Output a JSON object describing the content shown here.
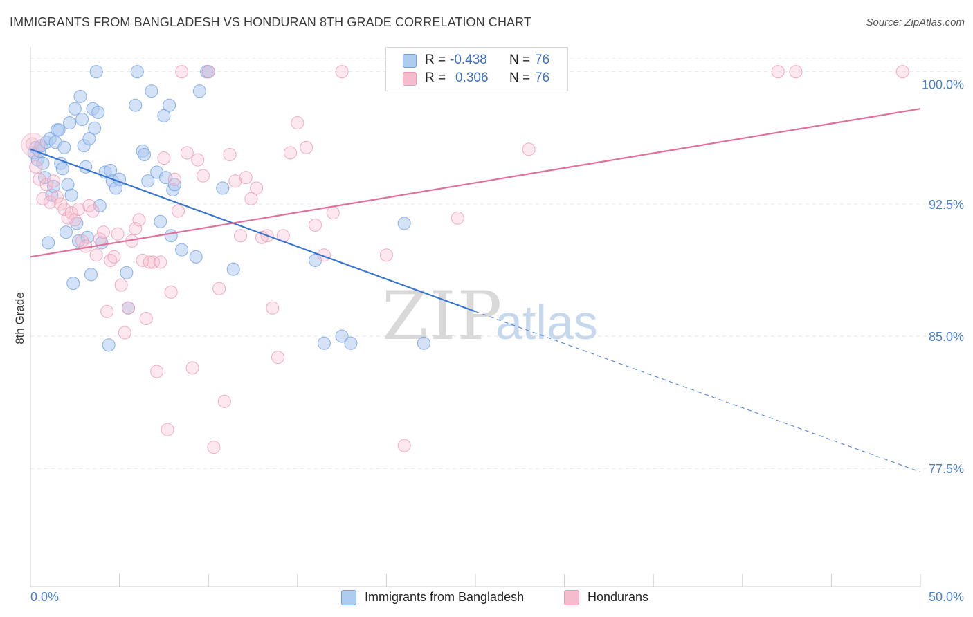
{
  "title": "IMMIGRANTS FROM BANGLADESH VS HONDURAN 8TH GRADE CORRELATION CHART",
  "source": "Source: ZipAtlas.com",
  "watermark": {
    "zip": "ZIP",
    "atlas": "atlas"
  },
  "legend": {
    "r_label": "R =",
    "n_label": "N =",
    "rows": [
      {
        "r": "-0.438",
        "n": "76",
        "color": "#aecbf0"
      },
      {
        "r": "0.306",
        "n": "76",
        "color": "#f6bccd"
      }
    ]
  },
  "chart_data": {
    "type": "scatter",
    "title": "IMMIGRANTS FROM BANGLADESH VS HONDURAN 8TH GRADE CORRELATION CHART",
    "xlabel": "",
    "ylabel": "8th Grade",
    "xlim": [
      0,
      50
    ],
    "ylim": [
      70.8,
      101.4
    ],
    "x_tick_labels": [
      "0.0%",
      "50.0%"
    ],
    "y_ticks": [
      77.5,
      85.0,
      92.5,
      100.0
    ],
    "y_tick_labels": [
      "77.5%",
      "85.0%",
      "92.5%",
      "100.0%"
    ],
    "grid": true,
    "legend_position": "top-center",
    "series": [
      {
        "name": "Immigrants from Bangladesh",
        "color": "#6f9fe0",
        "fill": "#aecbf0",
        "r": -0.438,
        "n": 76,
        "trend": {
          "x0": 0.0,
          "y0": 95.6,
          "x1": 25.0,
          "y1": 86.4,
          "dash_to_x": 50.0,
          "dash_to_y": 77.3
        },
        "points": [
          [
            0.2,
            95.4
          ],
          [
            0.3,
            95.7
          ],
          [
            0.4,
            95.0
          ],
          [
            0.5,
            95.5
          ],
          [
            0.6,
            95.8
          ],
          [
            0.7,
            94.8
          ],
          [
            0.8,
            94.0
          ],
          [
            0.9,
            96.0
          ],
          [
            1.0,
            90.3
          ],
          [
            1.1,
            96.2
          ],
          [
            1.2,
            93.0
          ],
          [
            1.3,
            93.5
          ],
          [
            1.4,
            96.0
          ],
          [
            1.5,
            96.7
          ],
          [
            1.6,
            96.7
          ],
          [
            1.7,
            94.8
          ],
          [
            1.8,
            94.5
          ],
          [
            1.9,
            95.7
          ],
          [
            2.0,
            90.9
          ],
          [
            2.1,
            93.6
          ],
          [
            2.2,
            97.1
          ],
          [
            2.3,
            93.0
          ],
          [
            2.4,
            88.0
          ],
          [
            2.5,
            97.9
          ],
          [
            2.6,
            91.4
          ],
          [
            2.7,
            90.4
          ],
          [
            2.8,
            98.6
          ],
          [
            2.9,
            97.3
          ],
          [
            3.0,
            95.8
          ],
          [
            3.1,
            94.6
          ],
          [
            3.2,
            90.6
          ],
          [
            3.3,
            96.2
          ],
          [
            3.4,
            88.5
          ],
          [
            3.5,
            97.9
          ],
          [
            3.6,
            96.8
          ],
          [
            3.7,
            100.0
          ],
          [
            3.8,
            97.7
          ],
          [
            3.9,
            92.4
          ],
          [
            4.0,
            90.3
          ],
          [
            4.2,
            94.3
          ],
          [
            4.4,
            84.5
          ],
          [
            4.5,
            94.4
          ],
          [
            4.6,
            93.8
          ],
          [
            4.8,
            93.4
          ],
          [
            5.0,
            93.9
          ],
          [
            5.4,
            88.6
          ],
          [
            5.5,
            86.6
          ],
          [
            5.9,
            98.1
          ],
          [
            6.0,
            100.0
          ],
          [
            6.3,
            95.5
          ],
          [
            6.4,
            95.3
          ],
          [
            6.6,
            93.8
          ],
          [
            6.8,
            98.9
          ],
          [
            7.1,
            94.3
          ],
          [
            7.3,
            91.5
          ],
          [
            7.5,
            97.5
          ],
          [
            7.6,
            94.0
          ],
          [
            7.8,
            98.1
          ],
          [
            7.9,
            90.7
          ],
          [
            8.0,
            93.3
          ],
          [
            8.1,
            93.6
          ],
          [
            8.5,
            89.9
          ],
          [
            9.3,
            89.5
          ],
          [
            9.5,
            98.9
          ],
          [
            9.9,
            100.0
          ],
          [
            10.0,
            100.0
          ],
          [
            10.8,
            93.4
          ],
          [
            11.4,
            88.8
          ],
          [
            16.0,
            89.3
          ],
          [
            16.5,
            84.6
          ],
          [
            17.5,
            85.0
          ],
          [
            18.0,
            84.6
          ],
          [
            21.0,
            91.4
          ],
          [
            21.5,
            100.0
          ],
          [
            21.9,
            100.0
          ],
          [
            22.1,
            84.6
          ]
        ]
      },
      {
        "name": "Hondurans",
        "color": "#ee9ab4",
        "fill": "#f6bccd",
        "r": 0.306,
        "n": 76,
        "trend": {
          "x0": 0.0,
          "y0": 89.5,
          "x1": 50.0,
          "y1": 97.9
        },
        "points": [
          [
            0.1,
            95.9
          ],
          [
            0.3,
            94.6
          ],
          [
            0.5,
            93.9
          ],
          [
            0.7,
            92.8
          ],
          [
            0.9,
            93.6
          ],
          [
            1.1,
            92.6
          ],
          [
            1.3,
            93.8
          ],
          [
            1.5,
            92.9
          ],
          [
            1.7,
            92.5
          ],
          [
            1.9,
            92.2
          ],
          [
            2.1,
            91.7
          ],
          [
            2.3,
            92.0
          ],
          [
            2.5,
            91.6
          ],
          [
            2.7,
            92.2
          ],
          [
            2.9,
            90.4
          ],
          [
            3.1,
            90.1
          ],
          [
            3.3,
            92.4
          ],
          [
            3.5,
            92.1
          ],
          [
            3.7,
            89.6
          ],
          [
            3.9,
            90.5
          ],
          [
            4.1,
            90.9
          ],
          [
            4.3,
            86.4
          ],
          [
            4.5,
            89.3
          ],
          [
            4.7,
            89.5
          ],
          [
            4.9,
            90.8
          ],
          [
            5.1,
            87.9
          ],
          [
            5.3,
            85.2
          ],
          [
            5.5,
            86.6
          ],
          [
            5.7,
            90.4
          ],
          [
            5.9,
            91.1
          ],
          [
            6.1,
            91.6
          ],
          [
            6.3,
            89.3
          ],
          [
            6.5,
            86.0
          ],
          [
            6.7,
            89.2
          ],
          [
            6.9,
            89.2
          ],
          [
            7.1,
            83.0
          ],
          [
            7.3,
            89.2
          ],
          [
            7.5,
            95.1
          ],
          [
            7.7,
            79.7
          ],
          [
            7.9,
            87.5
          ],
          [
            8.1,
            93.9
          ],
          [
            8.3,
            92.1
          ],
          [
            8.5,
            100.0
          ],
          [
            8.8,
            95.4
          ],
          [
            9.1,
            83.2
          ],
          [
            9.4,
            95.0
          ],
          [
            9.7,
            94.1
          ],
          [
            10.0,
            100.0
          ],
          [
            10.3,
            78.7
          ],
          [
            10.6,
            87.7
          ],
          [
            10.9,
            81.3
          ],
          [
            11.2,
            95.3
          ],
          [
            11.5,
            93.8
          ],
          [
            11.8,
            90.7
          ],
          [
            12.1,
            94.0
          ],
          [
            12.4,
            92.8
          ],
          [
            12.7,
            93.4
          ],
          [
            13.0,
            90.6
          ],
          [
            13.3,
            90.7
          ],
          [
            13.6,
            86.6
          ],
          [
            13.9,
            83.8
          ],
          [
            14.2,
            90.7
          ],
          [
            14.6,
            95.4
          ],
          [
            15.0,
            97.1
          ],
          [
            15.5,
            95.7
          ],
          [
            16.0,
            91.3
          ],
          [
            16.5,
            89.6
          ],
          [
            17.0,
            92.0
          ],
          [
            17.5,
            100.0
          ],
          [
            20.0,
            89.6
          ],
          [
            21.0,
            78.8
          ],
          [
            24.0,
            91.7
          ],
          [
            28.0,
            95.6
          ],
          [
            42.0,
            100.0
          ],
          [
            43.0,
            100.0
          ],
          [
            49.0,
            100.0
          ]
        ]
      }
    ]
  }
}
